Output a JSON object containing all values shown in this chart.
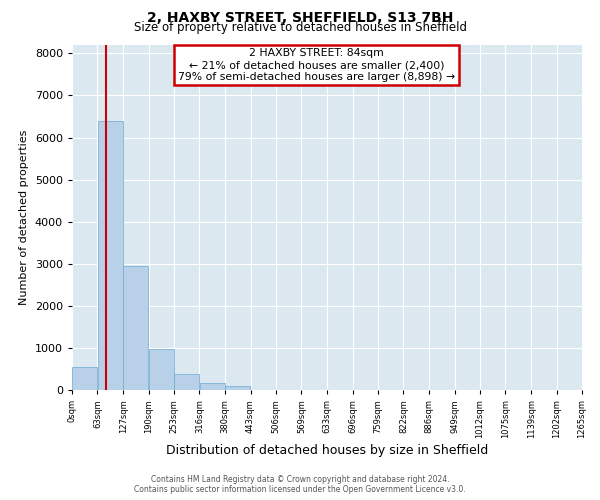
{
  "title": "2, HAXBY STREET, SHEFFIELD, S13 7BH",
  "subtitle": "Size of property relative to detached houses in Sheffield",
  "xlabel": "Distribution of detached houses by size in Sheffield",
  "ylabel": "Number of detached properties",
  "bar_values": [
    550,
    6400,
    2950,
    975,
    375,
    175,
    100,
    0,
    0,
    0,
    0,
    0,
    0,
    0,
    0,
    0,
    0,
    0,
    0,
    0
  ],
  "bin_edges": [
    0,
    63,
    127,
    190,
    253,
    316,
    380,
    443,
    506,
    569,
    633,
    696,
    759,
    822,
    886,
    949,
    1012,
    1075,
    1139,
    1202,
    1265
  ],
  "tick_labels": [
    "0sqm",
    "63sqm",
    "127sqm",
    "190sqm",
    "253sqm",
    "316sqm",
    "380sqm",
    "443sqm",
    "506sqm",
    "569sqm",
    "633sqm",
    "696sqm",
    "759sqm",
    "822sqm",
    "886sqm",
    "949sqm",
    "1012sqm",
    "1075sqm",
    "1139sqm",
    "1202sqm",
    "1265sqm"
  ],
  "bar_color": "#b8d0e8",
  "bar_edge_color": "#6aaad4",
  "red_line_x": 84,
  "annotation_line1": "2 HAXBY STREET: 84sqm",
  "annotation_line2": "← 21% of detached houses are smaller (2,400)",
  "annotation_line3": "79% of semi-detached houses are larger (8,898) →",
  "annotation_box_color": "#cc0000",
  "ylim": [
    0,
    8200
  ],
  "yticks": [
    0,
    1000,
    2000,
    3000,
    4000,
    5000,
    6000,
    7000,
    8000
  ],
  "background_color": "#dce8f0",
  "grid_color": "#ffffff",
  "footer_line1": "Contains HM Land Registry data © Crown copyright and database right 2024.",
  "footer_line2": "Contains public sector information licensed under the Open Government Licence v3.0."
}
